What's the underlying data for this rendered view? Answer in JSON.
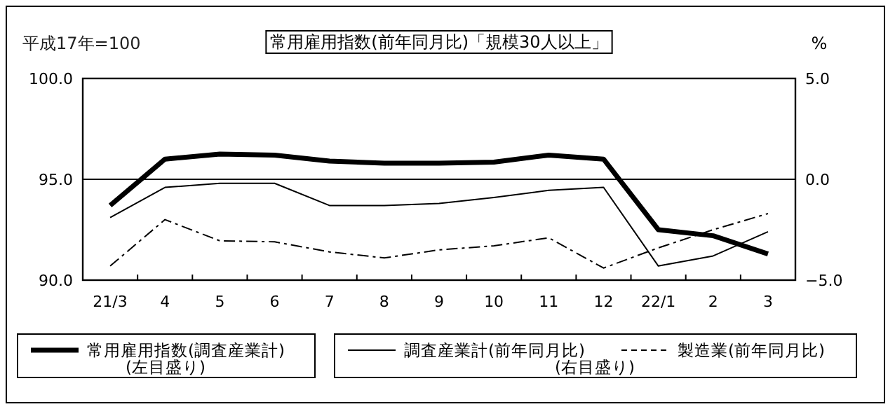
{
  "chart_data": {
    "type": "line",
    "title": "常用雇用指数(前年同月比)「規模30人以上」",
    "ylabel": "平成17年=100",
    "y2label": "%",
    "categories": [
      "21/3",
      "4",
      "5",
      "6",
      "7",
      "8",
      "9",
      "10",
      "11",
      "12",
      "22/1",
      "2",
      "3"
    ],
    "series": [
      {
        "name": "常用雇用指数(調査産業計)",
        "color": "#000000",
        "axis": "y",
        "line_style": "solid",
        "values": [
          93.7,
          96.0,
          96.25,
          96.2,
          95.9,
          95.8,
          95.8,
          95.85,
          96.2,
          96.0,
          92.5,
          92.2,
          91.3
        ]
      },
      {
        "name": "調査産業計(前年同月比)",
        "color": "#000000",
        "axis": "y2",
        "line_style": "solid",
        "values": [
          -1.9,
          -0.4,
          -0.2,
          -0.2,
          -1.3,
          -1.3,
          -1.2,
          -0.9,
          -0.55,
          -0.4,
          -4.3,
          -3.8,
          -2.6
        ]
      },
      {
        "name": "製造業(前年同月比)",
        "color": "#000000",
        "axis": "y2",
        "line_style": "dashed",
        "values": [
          -4.3,
          -2.0,
          -3.05,
          -3.1,
          -3.6,
          -3.9,
          -3.5,
          -3.3,
          -2.9,
          -4.4,
          -3.4,
          -2.5,
          -1.7
        ]
      }
    ],
    "ylim": [
      90,
      100
    ],
    "yticks": [
      {
        "value": 90,
        "label": "90.0"
      },
      {
        "value": 95,
        "label": "95.0"
      },
      {
        "value": 100,
        "label": "100.0"
      }
    ],
    "y2lim": [
      -5,
      5
    ],
    "y2ticks": [
      {
        "value": -5,
        "label": "−5.0"
      },
      {
        "value": 0,
        "label": "0.0"
      },
      {
        "value": 5,
        "label": "5.0"
      }
    ],
    "grid": "y",
    "legend": "bottom",
    "marker": "none",
    "annotations": [
      "(左目盛り)",
      "(右目盛り)"
    ]
  }
}
